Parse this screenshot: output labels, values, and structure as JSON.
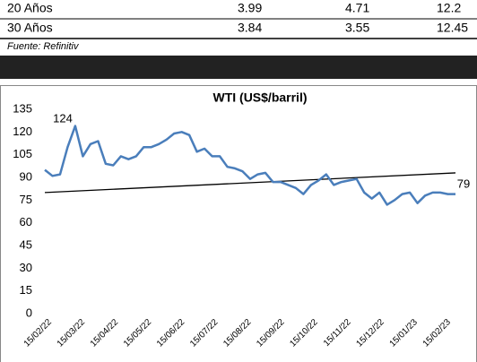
{
  "table": {
    "rows": [
      [
        "20 Años",
        "3.99",
        "4.71",
        "12.2"
      ],
      [
        "30 Años",
        "3.84",
        "3.55",
        "12.45"
      ]
    ],
    "source": "Fuente: Refinitiv"
  },
  "chart_data": {
    "type": "line",
    "title": "WTI (US$/barril)",
    "x_labels": [
      "15/02/22",
      "15/03/22",
      "15/04/22",
      "15/05/22",
      "15/06/22",
      "15/07/22",
      "15/08/22",
      "15/09/22",
      "15/10/22",
      "15/11/22",
      "15/12/22",
      "15/01/23",
      "15/02/23"
    ],
    "series": [
      {
        "color": "#4a7ebb",
        "values": [
          95,
          91,
          92,
          110,
          124,
          104,
          112,
          114,
          99,
          98,
          104,
          102,
          104,
          110,
          110,
          112,
          115,
          119,
          120,
          118,
          107,
          109,
          104,
          104,
          97,
          96,
          94,
          89,
          92,
          93,
          87,
          87,
          85,
          83,
          79,
          85,
          88,
          92,
          85,
          87,
          88,
          89,
          80,
          76,
          80,
          72,
          75,
          79,
          80,
          73,
          78,
          80,
          80,
          79,
          79
        ]
      }
    ],
    "trend_line": [
      80,
      93
    ],
    "annotations": [
      "124",
      "79"
    ],
    "ylim": [
      0,
      135
    ],
    "yticks": [
      0,
      15,
      30,
      45,
      60,
      75,
      90,
      105,
      120,
      135
    ]
  }
}
